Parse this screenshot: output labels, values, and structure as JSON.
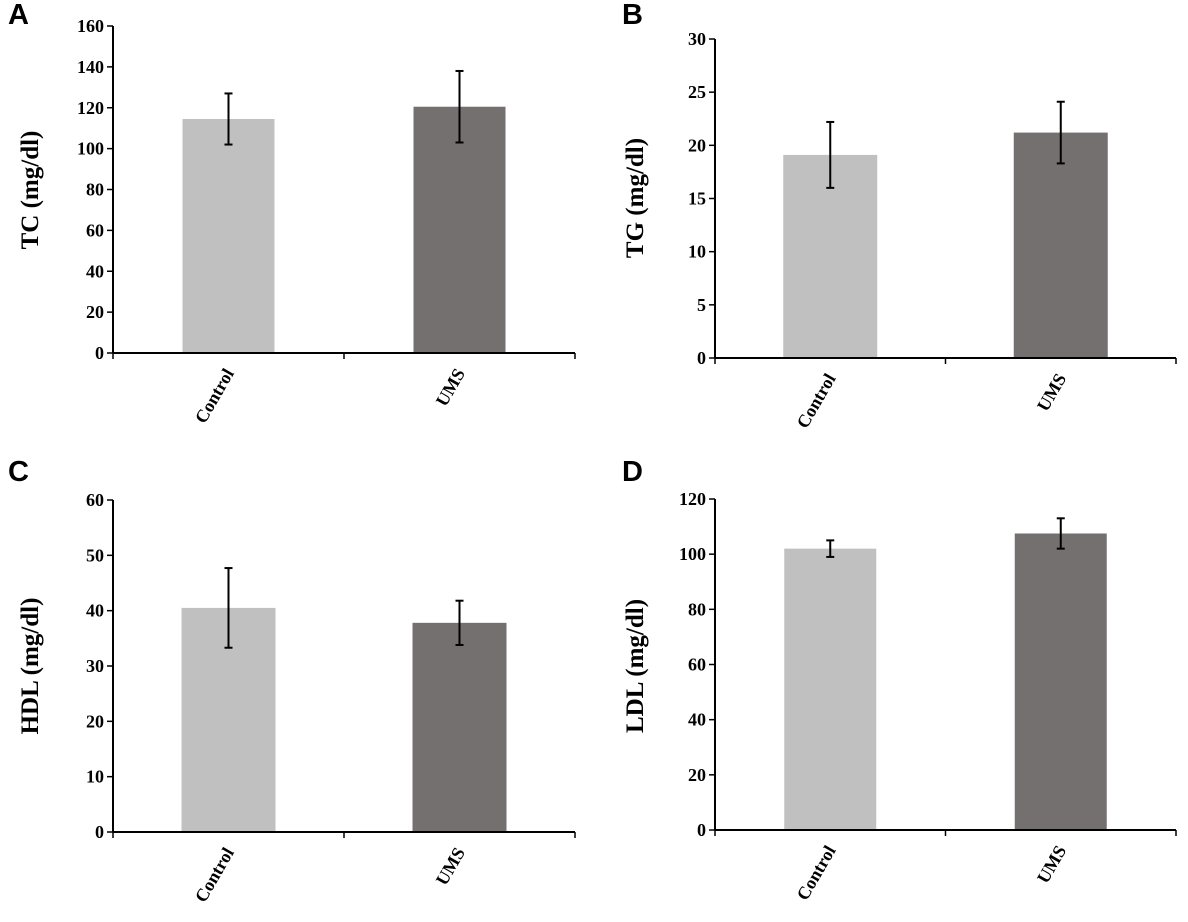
{
  "colors": {
    "control": "#c0c0c0",
    "ums": "#757070"
  },
  "chart_data": [
    {
      "type": "bar",
      "panel": "A",
      "categories": [
        "Control",
        "UMS"
      ],
      "values": [
        114.5,
        120.5
      ],
      "errors": [
        12.5,
        17.5
      ],
      "ylabel": "TC (mg/dl)",
      "ylim": [
        0,
        160
      ],
      "yticks": [
        0,
        20,
        40,
        60,
        80,
        100,
        120,
        140,
        160
      ],
      "grid": false
    },
    {
      "type": "bar",
      "panel": "B",
      "categories": [
        "Control",
        "UMS"
      ],
      "values": [
        19.1,
        21.2
      ],
      "errors": [
        3.1,
        2.9
      ],
      "ylabel": "TG (mg/dl)",
      "ylim": [
        0,
        30
      ],
      "yticks": [
        0,
        5,
        10,
        15,
        20,
        25,
        30
      ],
      "grid": false
    },
    {
      "type": "bar",
      "panel": "C",
      "categories": [
        "Control",
        "UMS"
      ],
      "values": [
        40.5,
        37.8
      ],
      "errors": [
        7.2,
        4.0
      ],
      "ylabel": "HDL (mg/dl)",
      "ylim": [
        0,
        60
      ],
      "yticks": [
        0,
        10,
        20,
        30,
        40,
        50,
        60
      ],
      "grid": false
    },
    {
      "type": "bar",
      "panel": "D",
      "categories": [
        "Control",
        "UMS"
      ],
      "values": [
        102,
        107.5
      ],
      "errors": [
        3,
        5.5
      ],
      "ylabel": "LDL (mg/dl)",
      "ylim": [
        0,
        120
      ],
      "yticks": [
        0,
        20,
        40,
        60,
        80,
        100,
        120
      ],
      "grid": false
    }
  ]
}
